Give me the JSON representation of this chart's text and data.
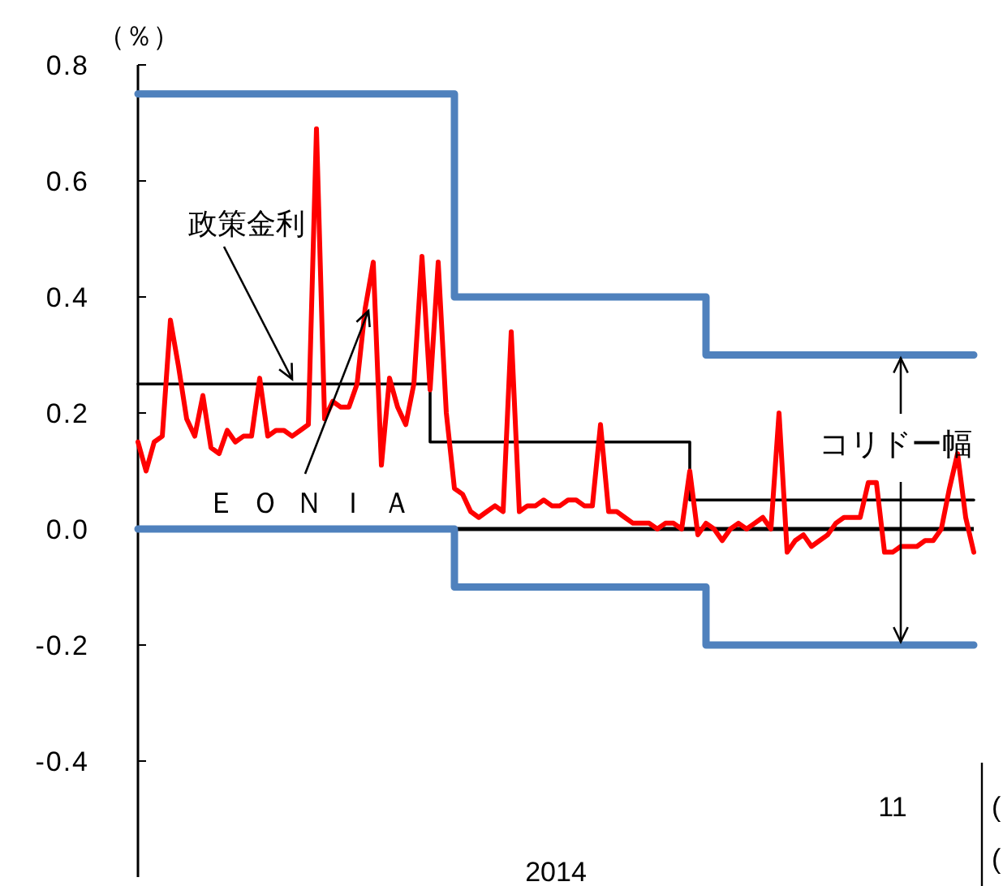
{
  "chart_data": {
    "type": "line",
    "ylabel": "（％）",
    "categories": [
      null,
      null,
      null,
      null,
      null,
      null,
      null,
      null,
      null,
      null,
      null,
      null,
      null,
      null,
      null,
      null,
      null,
      null,
      null,
      null,
      null,
      null,
      null,
      null,
      null,
      null,
      null,
      null,
      null,
      null,
      null,
      null,
      null,
      null,
      null,
      null,
      null,
      null,
      null,
      null,
      null,
      null,
      null,
      null,
      null,
      null,
      null,
      null,
      null,
      null,
      null,
      null,
      null,
      null,
      null,
      null,
      null,
      null,
      null,
      null,
      null,
      null,
      null,
      null,
      null,
      null,
      null,
      null,
      null,
      null,
      null,
      null,
      null,
      null,
      null,
      null,
      null,
      null,
      null,
      null,
      null,
      null,
      null,
      null,
      null,
      null,
      null,
      null,
      null,
      null,
      null,
      null,
      null,
      "11",
      null,
      null,
      null,
      null,
      null,
      null,
      null,
      null,
      null,
      null
    ],
    "ylim": [
      -0.6,
      0.8
    ],
    "yticks": [
      {
        "value": -0.4,
        "label": "-0.4"
      },
      {
        "value": -0.2,
        "label": "-0.2"
      },
      {
        "value": 0,
        "label": "0.0"
      },
      {
        "value": 0.2,
        "label": "0.2"
      },
      {
        "value": 0.4,
        "label": "0.4"
      },
      {
        "value": 0.6,
        "label": "0.6"
      },
      {
        "value": 0.8,
        "label": "0.8"
      }
    ],
    "grid": false,
    "ref_lines": [
      {
        "axis": "y",
        "value": 0,
        "color": "#000000"
      }
    ],
    "series": [
      {
        "type": "step",
        "color": "#4f81bd",
        "values": [
          0.75,
          0.75,
          0.75,
          0.75,
          0.75,
          0.75,
          0.75,
          0.75,
          0.75,
          0.75,
          0.75,
          0.75,
          0.75,
          0.75,
          0.75,
          0.75,
          0.75,
          0.75,
          0.75,
          0.75,
          0.75,
          0.75,
          0.75,
          0.75,
          0.75,
          0.75,
          0.75,
          0.75,
          0.75,
          0.75,
          0.75,
          0.75,
          0.75,
          0.75,
          0.75,
          0.75,
          0.75,
          0.75,
          0.75,
          0.4,
          0.4,
          0.4,
          0.4,
          0.4,
          0.4,
          0.4,
          0.4,
          0.4,
          0.4,
          0.4,
          0.4,
          0.4,
          0.4,
          0.4,
          0.4,
          0.4,
          0.4,
          0.4,
          0.4,
          0.4,
          0.4,
          0.4,
          0.4,
          0.4,
          0.4,
          0.4,
          0.4,
          0.4,
          0.4,
          0.4,
          0.3,
          0.3,
          0.3,
          0.3,
          0.3,
          0.3,
          0.3,
          0.3,
          0.3,
          0.3,
          0.3,
          0.3,
          0.3,
          0.3,
          0.3,
          0.3,
          0.3,
          0.3,
          0.3,
          0.3,
          0.3,
          0.3,
          0.3,
          0.3,
          0.3,
          0.3,
          0.3,
          0.3,
          0.3,
          0.3,
          0.3,
          0.3,
          0.3,
          0.3
        ]
      },
      {
        "type": "step",
        "color": "#4f81bd",
        "values": [
          0,
          0,
          0,
          0,
          0,
          0,
          0,
          0,
          0,
          0,
          0,
          0,
          0,
          0,
          0,
          0,
          0,
          0,
          0,
          0,
          0,
          0,
          0,
          0,
          0,
          0,
          0,
          0,
          0,
          0,
          0,
          0,
          0,
          0,
          0,
          0,
          0,
          0,
          0,
          -0.1,
          -0.1,
          -0.1,
          -0.1,
          -0.1,
          -0.1,
          -0.1,
          -0.1,
          -0.1,
          -0.1,
          -0.1,
          -0.1,
          -0.1,
          -0.1,
          -0.1,
          -0.1,
          -0.1,
          -0.1,
          -0.1,
          -0.1,
          -0.1,
          -0.1,
          -0.1,
          -0.1,
          -0.1,
          -0.1,
          -0.1,
          -0.1,
          -0.1,
          -0.1,
          -0.1,
          -0.2,
          -0.2,
          -0.2,
          -0.2,
          -0.2,
          -0.2,
          -0.2,
          -0.2,
          -0.2,
          -0.2,
          -0.2,
          -0.2,
          -0.2,
          -0.2,
          -0.2,
          -0.2,
          -0.2,
          -0.2,
          -0.2,
          -0.2,
          -0.2,
          -0.2,
          -0.2,
          -0.2,
          -0.2,
          -0.2,
          -0.2,
          -0.2,
          -0.2,
          -0.2,
          -0.2,
          -0.2,
          -0.2,
          -0.2
        ]
      },
      {
        "type": "step",
        "name": "政策金利",
        "color": "#000000",
        "values": [
          0.25,
          0.25,
          0.25,
          0.25,
          0.25,
          0.25,
          0.25,
          0.25,
          0.25,
          0.25,
          0.25,
          0.25,
          0.25,
          0.25,
          0.25,
          0.25,
          0.25,
          0.25,
          0.25,
          0.25,
          0.25,
          0.25,
          0.25,
          0.25,
          0.25,
          0.25,
          0.25,
          0.25,
          0.25,
          0.25,
          0.25,
          0.25,
          0.25,
          0.25,
          0.25,
          0.25,
          0.15,
          0.15,
          0.15,
          0.15,
          0.15,
          0.15,
          0.15,
          0.15,
          0.15,
          0.15,
          0.15,
          0.15,
          0.15,
          0.15,
          0.15,
          0.15,
          0.15,
          0.15,
          0.15,
          0.15,
          0.15,
          0.15,
          0.15,
          0.15,
          0.15,
          0.15,
          0.15,
          0.15,
          0.15,
          0.15,
          0.15,
          0.15,
          0.05,
          0.05,
          0.05,
          0.05,
          0.05,
          0.05,
          0.05,
          0.05,
          0.05,
          0.05,
          0.05,
          0.05,
          0.05,
          0.05,
          0.05,
          0.05,
          0.05,
          0.05,
          0.05,
          0.05,
          0.05,
          0.05,
          0.05,
          0.05,
          0.05,
          0.05,
          0.05,
          0.05,
          0.05,
          0.05,
          0.05,
          0.05,
          0.05,
          0.05,
          0.05,
          0.05
        ]
      },
      {
        "type": "line",
        "name": "ＥＯＮＩＡ",
        "color": "#ff0000",
        "values": [
          0.15,
          0.1,
          0.15,
          0.16,
          0.36,
          0.28,
          0.19,
          0.16,
          0.23,
          0.14,
          0.13,
          0.17,
          0.15,
          0.16,
          0.16,
          0.26,
          0.16,
          0.17,
          0.17,
          0.16,
          0.17,
          0.18,
          0.69,
          0.19,
          0.22,
          0.21,
          0.21,
          0.25,
          0.38,
          0.46,
          0.11,
          0.26,
          0.21,
          0.18,
          0.25,
          0.47,
          0.24,
          0.46,
          0.2,
          0.07,
          0.06,
          0.03,
          0.02,
          0.03,
          0.04,
          0.03,
          0.34,
          0.03,
          0.04,
          0.04,
          0.05,
          0.04,
          0.04,
          0.05,
          0.05,
          0.04,
          0.04,
          0.18,
          0.03,
          0.03,
          0.02,
          0.01,
          0.01,
          0.01,
          0.0,
          0.01,
          0.01,
          0.0,
          0.1,
          -0.01,
          0.01,
          0.0,
          -0.02,
          0.0,
          0.01,
          0.0,
          0.01,
          0.02,
          0.0,
          0.2,
          -0.04,
          -0.02,
          -0.01,
          -0.03,
          -0.02,
          -0.01,
          0.01,
          0.02,
          0.02,
          0.02,
          0.08,
          0.08,
          -0.04,
          -0.04,
          -0.03,
          -0.03,
          -0.03,
          -0.02,
          -0.02,
          0.0,
          0.07,
          0.13,
          0.02,
          -0.04
        ]
      }
    ],
    "annotations": [
      "コリドー幅",
      "(",
      "(",
      "2014"
    ]
  }
}
